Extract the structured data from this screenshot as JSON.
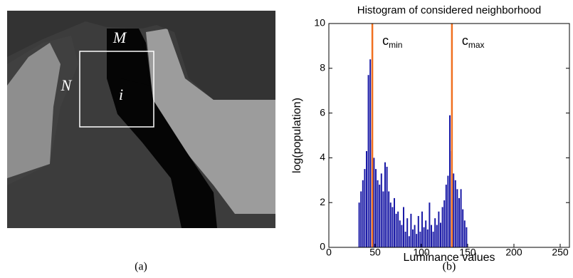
{
  "panel_a": {
    "labels": [
      "M",
      "N",
      "i"
    ],
    "caption": "(a)"
  },
  "chart_data": {
    "type": "histogram",
    "title": "Histogram of considered neighborhood",
    "x_label": "Luminance values",
    "y_label": "log(population)",
    "caption": "(b)",
    "color": "#1a1aa6",
    "bins": [
      32,
      34,
      36,
      38,
      40,
      42,
      44,
      46,
      48,
      50,
      52,
      54,
      56,
      58,
      60,
      62,
      64,
      66,
      68,
      70,
      72,
      74,
      76,
      78,
      80,
      82,
      84,
      86,
      88,
      90,
      92,
      94,
      96,
      98,
      100,
      102,
      104,
      106,
      108,
      110,
      112,
      114,
      116,
      118,
      120,
      122,
      124,
      126,
      128,
      130,
      132,
      134,
      136,
      138,
      140,
      142,
      144,
      146,
      148,
      150
    ],
    "counts": [
      2.0,
      2.5,
      3.0,
      3.5,
      4.3,
      7.7,
      8.4,
      4.8,
      4.0,
      3.5,
      3.0,
      2.8,
      3.3,
      2.5,
      3.8,
      3.6,
      2.5,
      2.0,
      1.8,
      2.2,
      1.5,
      1.6,
      1.2,
      1.0,
      1.8,
      0.7,
      1.3,
      0.5,
      1.5,
      0.8,
      1.0,
      0.6,
      1.4,
      0.7,
      1.6,
      0.9,
      1.2,
      0.8,
      2.0,
      1.0,
      0.7,
      1.3,
      1.0,
      1.6,
      1.1,
      1.8,
      2.1,
      2.8,
      3.2,
      5.9,
      4.3,
      3.3,
      3.0,
      2.6,
      2.2,
      2.6,
      1.7,
      1.2,
      0.9
    ],
    "annotations": [
      {
        "text": "c",
        "subscript": "min",
        "x": 47,
        "color": "#f07020"
      },
      {
        "text": "c",
        "subscript": "max",
        "x": 133,
        "color": "#f07020"
      }
    ],
    "xlim": [
      0,
      260
    ],
    "xticks": [
      0,
      50,
      100,
      150,
      200,
      250
    ],
    "ylim": [
      0,
      10
    ],
    "yticks": [
      0,
      2,
      4,
      6,
      8,
      10
    ],
    "grid": false
  }
}
